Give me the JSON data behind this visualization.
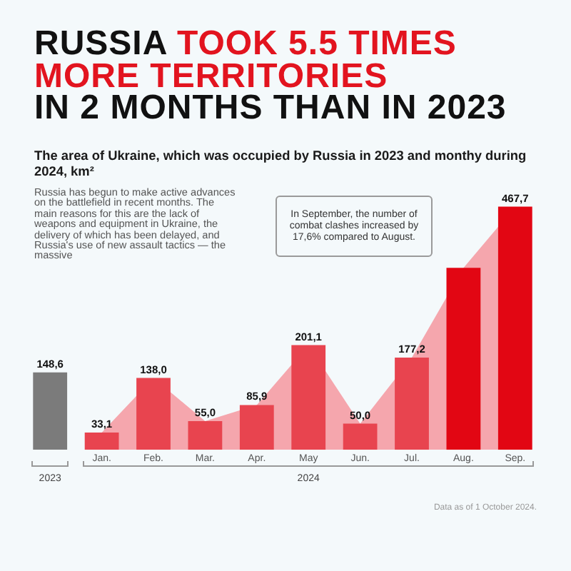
{
  "chart_data": {
    "type": "bar",
    "title": "RUSSIA TOOK 5.5 TIMES MORE TERRITORIES IN 2 MONTHS THAN IN 2023",
    "subtitle": "The area of Ukraine, which was occupied by Russia in 2023 and monthy during 2024, km²",
    "categories": [
      null,
      "Jan.",
      "Feb.",
      "Mar.",
      "Apr.",
      "May",
      "Jun.",
      "Jul.",
      "Aug.",
      "Sep."
    ],
    "series": [
      {
        "colors": [
          "#7b7b7b",
          "#e8444f",
          "#e8444f",
          "#e8444f",
          "#e8444f",
          "#e8444f",
          "#e8444f",
          "#e8444f",
          "#e20613",
          "#e20613"
        ],
        "values": [
          148.6,
          33.1,
          138.0,
          55.0,
          85.9,
          201.1,
          50.0,
          177.2,
          350,
          467.7
        ],
        "value_labels": [
          "148,6",
          "33,1",
          "138,0",
          "55,0",
          "85,9",
          "201,1",
          "50,0",
          "177,2",
          null,
          "467,7"
        ]
      },
      {
        "type": "area",
        "color": "#f5a6ad",
        "values": [
          null,
          33.1,
          138.0,
          55.0,
          85.9,
          201.1,
          50.0,
          177.2,
          350,
          467.7
        ]
      }
    ],
    "annotations": [
      "2023",
      "2024",
      "Russia has begun to make active advances on the battlefield in recent months. The main reasons for this are the lack of weapons and equipment in Ukraine, the delivery of which has been delayed, and Russia's use of new assault tactics — the massive",
      "In September, the number of combat clashes increased by 17,6% compared to August.",
      "Data as of 1 October 2024."
    ]
  }
}
